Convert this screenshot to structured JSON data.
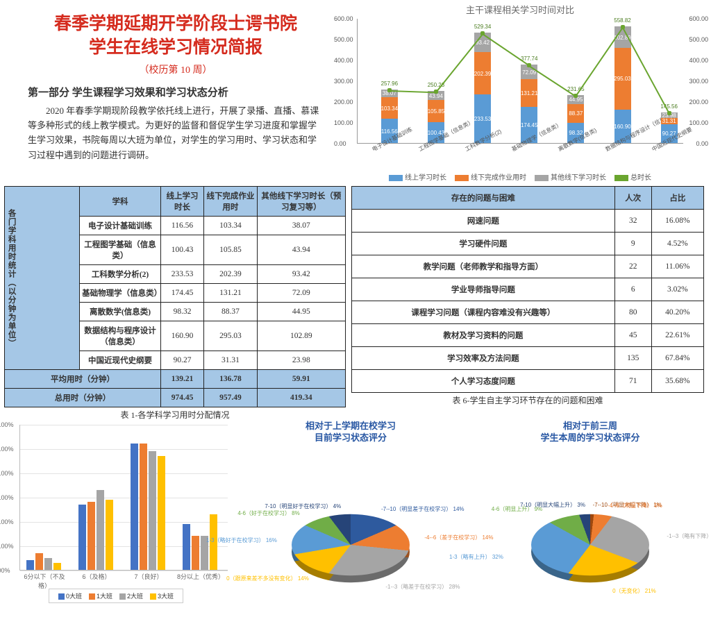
{
  "header": {
    "title_line1": "春季学期延期开学阶段士谔书院",
    "title_line2": "学生在线学习情况简报",
    "subtitle": "（校历第 10 周）",
    "section": "第一部分  学生课程学习效果和学习状态分析",
    "paragraph": "2020 年春季学期现阶段教学依托线上进行，开展了录播、直播、慕课等多种形式的线上教学模式。为更好的监督和督促学生学习进度和掌握学生学习效果，书院每周以大班为单位，对学生的学习用时、学习状态和学习过程中遇到的问题进行调研。"
  },
  "line_chart": {
    "title": "主干课程相关学习时间对比",
    "categories": [
      "电子设计基础训练",
      "工程图学基础（信息类）",
      "工科数学分析(2)",
      "基础物理学（信息类）",
      "离散数学(信息类)",
      "数据结构与程序设计（信息类）",
      "中国近现代史纲要"
    ],
    "series": [
      {
        "name": "线上学习时长",
        "color": "#5a9bd5",
        "values": [
          116.56,
          100.43,
          233.53,
          174.45,
          98.32,
          160.9,
          90.27
        ]
      },
      {
        "name": "线下完成作业用时",
        "color": "#ed7d31",
        "values": [
          103.34,
          105.85,
          202.39,
          131.21,
          88.37,
          295.03,
          31.31
        ]
      },
      {
        "name": "其他线下学习时长",
        "color": "#a5a5a5",
        "values": [
          38.07,
          43.94,
          93.42,
          72.09,
          44.95,
          102.89,
          23.98
        ]
      }
    ],
    "totals": {
      "name": "总时长",
      "color": "#6aa52f",
      "values": [
        257.96,
        250.23,
        529.34,
        377.74,
        231.65,
        558.82,
        145.56
      ]
    },
    "ymax": 600,
    "ystep": 100,
    "bar_labels_top": [
      38.07,
      43.94,
      93.42,
      72.09,
      44.95,
      102.89,
      23.98
    ]
  },
  "table1": {
    "side_label": "各门学科用时统计（以分钟为单位）",
    "headers": [
      "学科",
      "线上学习时长",
      "线下完成作业用时",
      "其他线下学习时长（预习复习等）"
    ],
    "rows": [
      [
        "电子设计基础训练",
        "116.56",
        "103.34",
        "38.07"
      ],
      [
        "工程图学基础（信息类）",
        "100.43",
        "105.85",
        "43.94"
      ],
      [
        "工科数学分析(2)",
        "233.53",
        "202.39",
        "93.42"
      ],
      [
        "基础物理学（信息类）",
        "174.45",
        "131.21",
        "72.09"
      ],
      [
        "离散数学(信息类)",
        "98.32",
        "88.37",
        "44.95"
      ],
      [
        "数据结构与程序设计（信息类）",
        "160.90",
        "295.03",
        "102.89"
      ],
      [
        "中国近现代史纲要",
        "90.27",
        "31.31",
        "23.98"
      ]
    ],
    "avg": [
      "平均用时（分钟）",
      "139.21",
      "136.78",
      "59.91"
    ],
    "total": [
      "总用时（分钟）",
      "974.45",
      "957.49",
      "419.34"
    ],
    "caption": "表 1-各学科学习用时分配情况"
  },
  "table2": {
    "headers": [
      "存在的问题与困难",
      "人次",
      "占比"
    ],
    "rows": [
      [
        "网速问题",
        "32",
        "16.08%"
      ],
      [
        "学习硬件问题",
        "9",
        "4.52%"
      ],
      [
        "教学问题（老师教学和指导方面）",
        "22",
        "11.06%"
      ],
      [
        "学业导师指导问题",
        "6",
        "3.02%"
      ],
      [
        "课程学习问题（课程内容难没有兴趣等）",
        "80",
        "40.20%"
      ],
      [
        "教材及学习资料的问题",
        "45",
        "22.61%"
      ],
      [
        "学习效率及方法问题",
        "135",
        "67.84%"
      ],
      [
        "个人学习态度问题",
        "71",
        "35.68%"
      ]
    ],
    "caption": "表 6-学生自主学习环节存在的问题和困难"
  },
  "bar2": {
    "categories": [
      "6分以下（不及格）",
      "6（及格）",
      "7（良好）",
      "8分以上（优秀）"
    ],
    "series": [
      {
        "name": "0大班",
        "color": "#4473c5",
        "values": [
          0.04,
          0.27,
          0.52,
          0.19
        ]
      },
      {
        "name": "1大班",
        "color": "#ed7d31",
        "values": [
          0.07,
          0.28,
          0.52,
          0.14
        ]
      },
      {
        "name": "2大班",
        "color": "#a5a5a5",
        "values": [
          0.05,
          0.33,
          0.49,
          0.14
        ]
      },
      {
        "name": "3大班",
        "color": "#ffc000",
        "values": [
          0.03,
          0.29,
          0.47,
          0.23
        ]
      }
    ],
    "ymax": 0.6,
    "ystep": 0.1
  },
  "pie1": {
    "title1": "相对于上学期在校学习",
    "title2": "目前学习状态评分",
    "slices": [
      {
        "label": "-7--10（明显差于在校学习）",
        "pct": 14,
        "color": "#2e5a9e"
      },
      {
        "label": "-4--6（差于在校学习）",
        "pct": 14,
        "color": "#ed7d31"
      },
      {
        "label": "-1--3（略差于在校学习）",
        "pct": 28,
        "color": "#a5a5a5"
      },
      {
        "label": "0（跟原来差不多没有变化）",
        "pct": 14,
        "color": "#ffc000"
      },
      {
        "label": "1-3（略好于在校学习）",
        "pct": 16,
        "color": "#5a9bd5"
      },
      {
        "label": "4-6（好于在校学习）",
        "pct": 8,
        "color": "#70ad47"
      },
      {
        "label": "7-10（明显好于在校学习）",
        "pct": 4,
        "color": "#264478"
      }
    ]
  },
  "pie2": {
    "title1": "相对于前三周",
    "title2": "学生本周的学习状态评分",
    "slices": [
      {
        "label": "-7--10（明显大幅下降）",
        "pct": 1,
        "color": "#9e480e"
      },
      {
        "label": "-4--6（明显下降）",
        "pct": 5,
        "color": "#ed7d31"
      },
      {
        "label": "-1--3（略有下降）",
        "pct": 29,
        "color": "#a5a5a5"
      },
      {
        "label": "0（无变化）",
        "pct": 21,
        "color": "#ffc000"
      },
      {
        "label": "1-3（略有上升）",
        "pct": 32,
        "color": "#5a9bd5"
      },
      {
        "label": "4-6（明显上升）",
        "pct": 9,
        "color": "#70ad47"
      },
      {
        "label": "7-10（明显大幅上升）",
        "pct": 3,
        "color": "#264478"
      }
    ]
  },
  "colors": {
    "title_red": "#d52b1e",
    "header_blue": "#a5c7e6"
  }
}
